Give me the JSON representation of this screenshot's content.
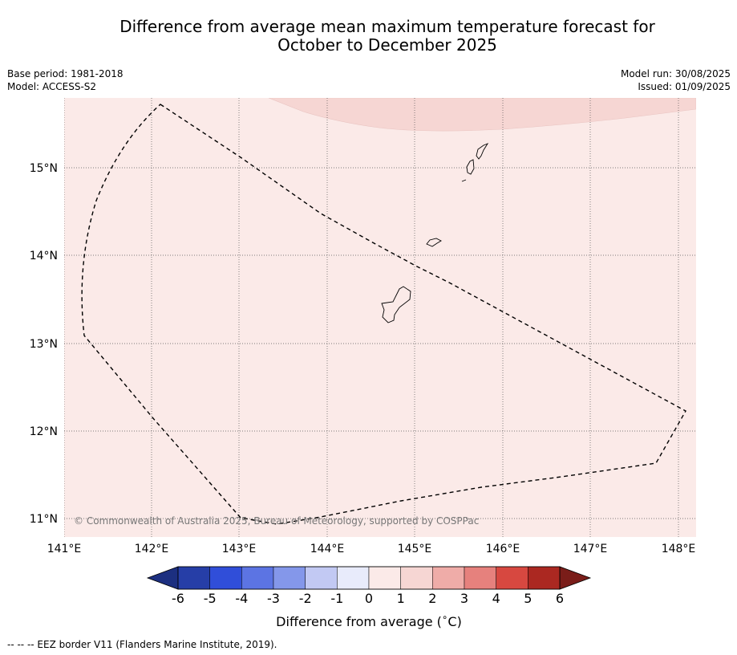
{
  "title": {
    "line1": "Difference from average mean maximum temperature forecast for",
    "line2": "October to December 2025"
  },
  "meta_left": {
    "base_period": "Base period: 1981-2018",
    "model": "Model: ACCESS-S2"
  },
  "meta_right": {
    "model_run": "Model run: 30/08/2025",
    "issued": "Issued: 01/09/2025"
  },
  "map": {
    "lon_labels": [
      "141°E",
      "142°E",
      "143°E",
      "144°E",
      "145°E",
      "146°E",
      "147°E",
      "148°E"
    ],
    "lat_labels": [
      "15°N",
      "14°N",
      "13°N",
      "12°N",
      "11°N"
    ],
    "copyright": "© Commonwealth of Australia 2025, Bureau of Meteorology, supported by COSPPac",
    "colors": {
      "background_fill": "#fbeae8",
      "upper_fill": "#f6d6d3"
    }
  },
  "colorbar": {
    "ticks": [
      "-6",
      "-5",
      "-4",
      "-3",
      "-2",
      "-1",
      "0",
      "1",
      "2",
      "3",
      "4",
      "5",
      "6"
    ],
    "colors": [
      "#263ea7",
      "#304ed9",
      "#5c74e3",
      "#8497ea",
      "#c2c9f3",
      "#e8ebfb",
      "#fbeae8",
      "#f6d6d3",
      "#efaca8",
      "#e6817d",
      "#d74840",
      "#ab2821"
    ],
    "under_color": "#1c2f80",
    "over_color": "#7a1d19",
    "label": "Difference from average (",
    "unit_symbol": "∘",
    "unit": "C)"
  },
  "footer": "--  --  -- EEZ border V11 (Flanders Marine Institute, 2019)."
}
